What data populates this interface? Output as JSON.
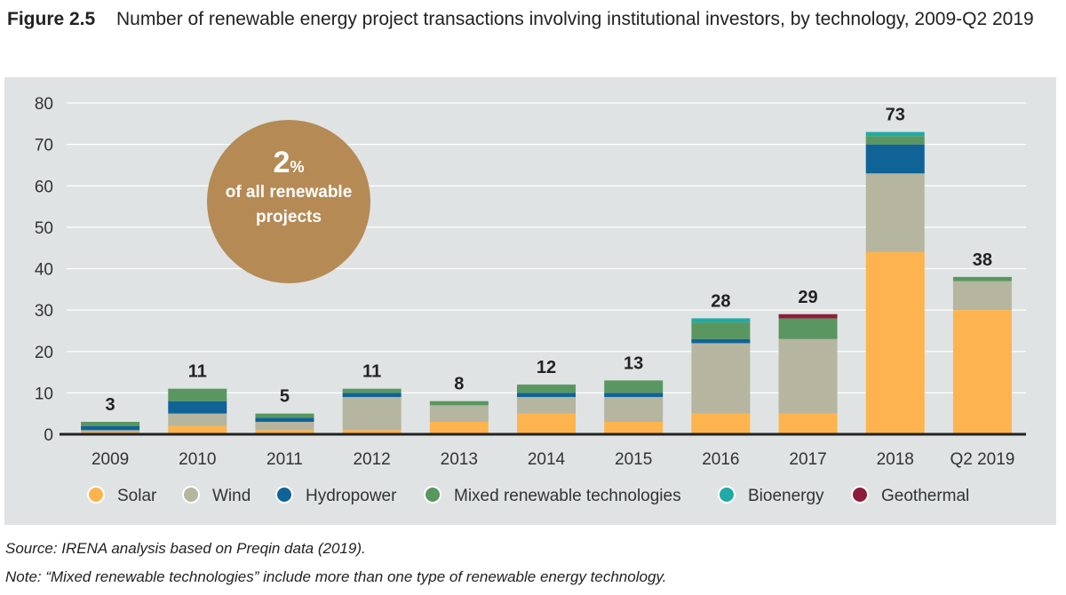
{
  "figure": {
    "label": "Figure 2.5",
    "title": "Number of renewable energy project transactions involving institutional investors, by technology, 2009-Q2 2019"
  },
  "callout": {
    "value": "2",
    "unit": "%",
    "text_line1": "of all renewable",
    "text_line2": "projects"
  },
  "colors": {
    "panel_bg": "#dfe3e3",
    "callout": "#b58a55",
    "Solar": "#fdb44e",
    "Wind": "#b5b5a0",
    "Hydropower": "#0f6397",
    "Mixed renewable technologies": "#5a9660",
    "Bioenergy": "#21aaa5",
    "Geothermal": "#8e1c3a"
  },
  "chart_data": {
    "type": "bar",
    "stacked": true,
    "title": "Number of renewable energy project transactions involving institutional investors, by technology, 2009-Q2 2019",
    "xlabel": "",
    "ylabel": "",
    "ylim": [
      0,
      80
    ],
    "yticks": [
      "0",
      "10",
      "20",
      "30",
      "40",
      "50",
      "60",
      "70",
      "80"
    ],
    "grid": true,
    "legend_position": "bottom",
    "categories": [
      "2009",
      "2010",
      "2011",
      "2012",
      "2013",
      "2014",
      "2015",
      "2016",
      "2017",
      "2018",
      "Q2 2019"
    ],
    "totals": [
      "3",
      "11",
      "5",
      "11",
      "8",
      "12",
      "13",
      "28",
      "29",
      "73",
      "38"
    ],
    "series": [
      {
        "name": "Solar",
        "values": [
          0.5,
          2,
          1,
          1,
          3,
          5,
          3,
          5,
          5,
          44,
          30
        ]
      },
      {
        "name": "Wind",
        "values": [
          0.5,
          3,
          2,
          8,
          4,
          4,
          6,
          17,
          18,
          19,
          7
        ]
      },
      {
        "name": "Hydropower",
        "values": [
          1,
          3,
          1,
          1,
          0,
          1,
          1,
          1,
          0,
          7,
          0
        ]
      },
      {
        "name": "Mixed renewable technologies",
        "values": [
          1,
          3,
          1,
          1,
          1,
          2,
          3,
          4,
          5,
          2,
          1
        ]
      },
      {
        "name": "Bioenergy",
        "values": [
          0,
          0,
          0,
          0,
          0,
          0,
          0,
          1,
          0,
          1,
          0
        ]
      },
      {
        "name": "Geothermal",
        "values": [
          0,
          0,
          0,
          0,
          0,
          0,
          0,
          0,
          1,
          0,
          0
        ]
      }
    ]
  },
  "source": "Source: IRENA analysis based on Preqin data (2019).",
  "note": "Note: “Mixed renewable technologies” include more than one type of renewable energy technology."
}
